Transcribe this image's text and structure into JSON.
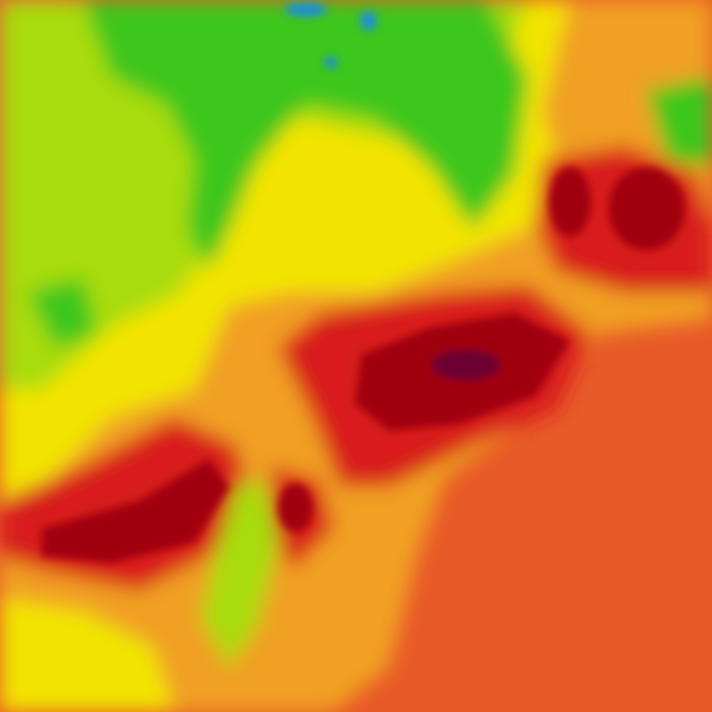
{
  "map": {
    "layer": "temperature-heatmap",
    "palette": {
      "cold_blue": "#1e8fd8",
      "green": "#3cc61a",
      "light_green": "#a8dc10",
      "yellow": "#f2e400",
      "orange": "#f0a020",
      "orange_red": "#e85a28",
      "red": "#d81e1e",
      "dark_red": "#a00010",
      "deep_maroon": "#6a0030"
    }
  }
}
